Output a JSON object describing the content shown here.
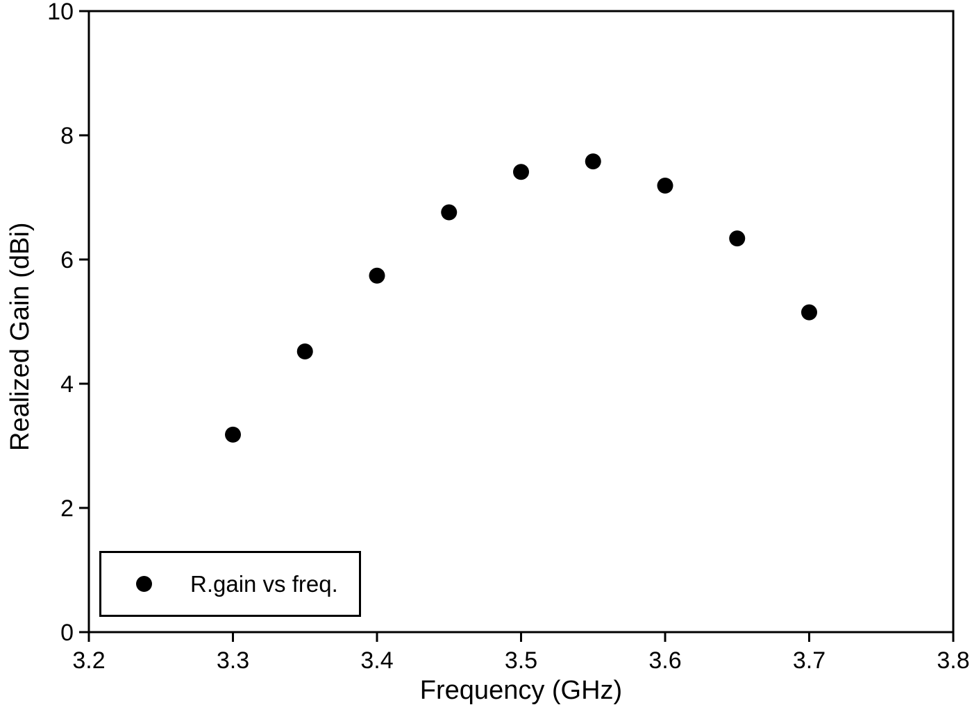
{
  "figure": {
    "background_color": "#ffffff",
    "frame_color": "#000000"
  },
  "chart_data": {
    "type": "scatter",
    "title": "",
    "xlabel": "Frequency (GHz)",
    "ylabel": "Realized Gain (dBi)",
    "xlim": [
      3.2,
      3.8
    ],
    "ylim": [
      0,
      10
    ],
    "xticks": [
      3.2,
      3.3,
      3.4,
      3.5,
      3.6,
      3.7,
      3.8
    ],
    "xtick_labels": [
      "3.2",
      "3.3",
      "3.4",
      "3.5",
      "3.6",
      "3.7",
      "3.8"
    ],
    "yticks": [
      0,
      2,
      4,
      6,
      8,
      10
    ],
    "ytick_labels": [
      "0",
      "2",
      "4",
      "6",
      "8",
      "10"
    ],
    "grid": false,
    "legend": {
      "position": "lower-left",
      "border": true,
      "entries": [
        {
          "label": "R.gain vs freq.",
          "marker": "filled-circle",
          "color": "#000000"
        }
      ]
    },
    "series": [
      {
        "name": "R.gain vs freq.",
        "marker_shape": "circle",
        "marker_color": "#000000",
        "x": [
          3.3,
          3.35,
          3.4,
          3.45,
          3.5,
          3.55,
          3.6,
          3.65,
          3.7
        ],
        "y": [
          3.18,
          4.52,
          5.74,
          6.76,
          7.41,
          7.58,
          7.19,
          6.34,
          5.15
        ]
      }
    ]
  }
}
